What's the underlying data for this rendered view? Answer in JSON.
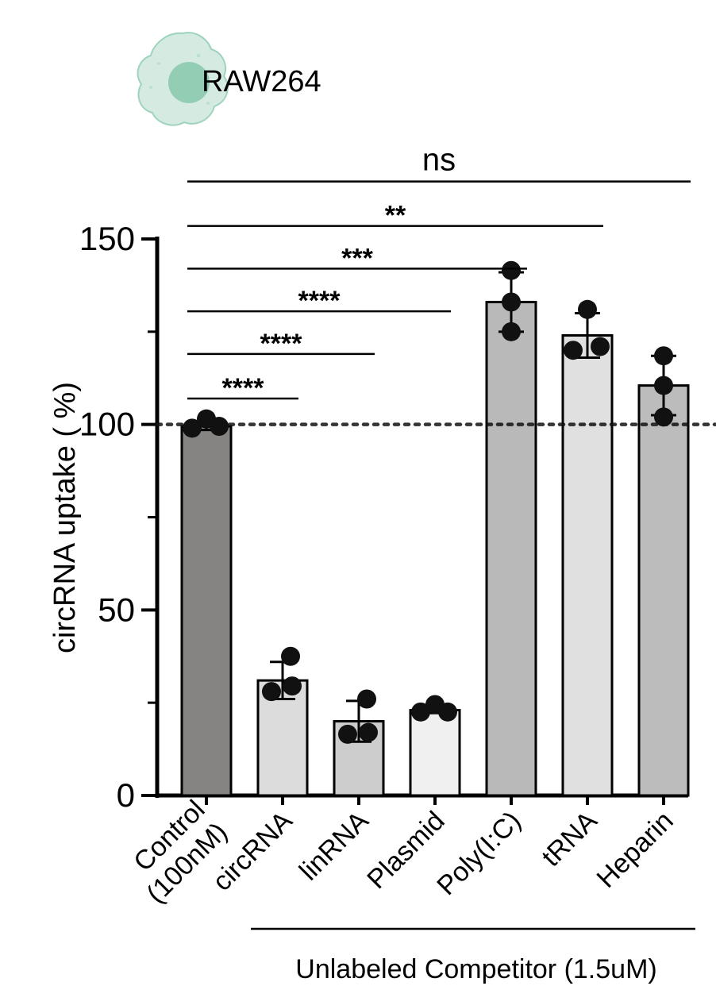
{
  "cell_label": "RAW264",
  "chart_data": {
    "type": "bar",
    "ylabel": "circRNA uptake ( %)",
    "ylim": [
      0,
      150
    ],
    "yticks": [
      0,
      50,
      100,
      150
    ],
    "reference_line": 100,
    "categories": [
      [
        "Control",
        "(100nM)"
      ],
      [
        "circRNA"
      ],
      [
        "linRNA"
      ],
      [
        "Plasmid"
      ],
      [
        "Poly(I:C)"
      ],
      [
        "tRNA"
      ],
      [
        "Heparin"
      ]
    ],
    "values": [
      99.5,
      31,
      20,
      23,
      133,
      124,
      110.5
    ],
    "errors": [
      1,
      5,
      5.5,
      0.8,
      8,
      6,
      8
    ],
    "points": [
      [
        99,
        101.5,
        99.5
      ],
      [
        37.5,
        28,
        29.5
      ],
      [
        26,
        16.5,
        17
      ],
      [
        22.5,
        24.5,
        22.5
      ],
      [
        141.5,
        133,
        125
      ],
      [
        131,
        120,
        121
      ],
      [
        118.5,
        110.5,
        102
      ]
    ],
    "bar_colors": [
      "#858482",
      "#dcdcdc",
      "#cdcdcd",
      "#f0f0f0",
      "#b9b9b9",
      "#e0e0e0",
      "#bcbcbc"
    ],
    "comparisons": [
      {
        "label": "****",
        "from": 0,
        "to": 1,
        "y": 107
      },
      {
        "label": "****",
        "from": 0,
        "to": 2,
        "y": 119
      },
      {
        "label": "****",
        "from": 0,
        "to": 3,
        "y": 130.5
      },
      {
        "label": "***",
        "from": 0,
        "to": 4,
        "y": 142
      },
      {
        "label": "**",
        "from": 0,
        "to": 5,
        "y": 153.5
      },
      {
        "label": "ns",
        "from": 0,
        "to": 6,
        "y": 165.5
      }
    ],
    "group_label": "Unlabeled Competitor (1.5uM)",
    "group_from": 1,
    "group_to": 6
  }
}
